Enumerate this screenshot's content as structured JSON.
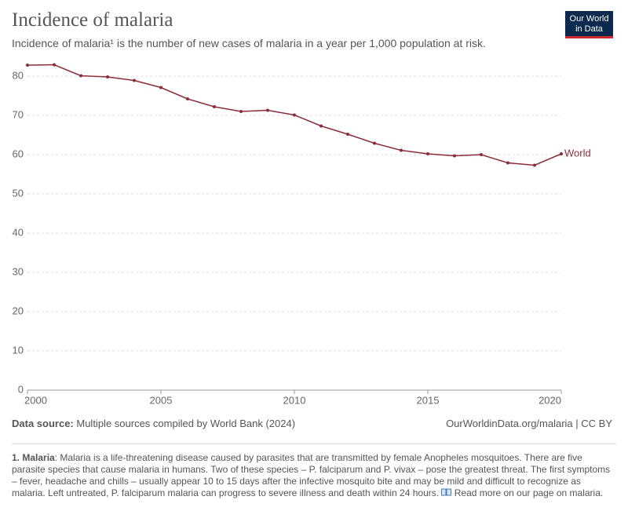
{
  "chart_data": {
    "type": "line",
    "title": "Incidence of malaria",
    "subtitle": "Incidence of malaria¹ is the number of new cases of malaria in a year per 1,000 population at risk.",
    "logo": [
      "Our World",
      "in Data"
    ],
    "x": [
      2000,
      2001,
      2002,
      2003,
      2004,
      2005,
      2006,
      2007,
      2008,
      2009,
      2010,
      2011,
      2012,
      2013,
      2014,
      2015,
      2016,
      2017,
      2018,
      2019,
      2020
    ],
    "series": [
      {
        "name": "World",
        "color": "#8c2c3a",
        "values": [
          82.8,
          82.9,
          80.1,
          79.8,
          78.9,
          77.1,
          74.2,
          72.2,
          71.0,
          71.3,
          70.1,
          67.3,
          65.2,
          62.9,
          61.1,
          60.2,
          59.7,
          60.0,
          57.9,
          57.3,
          60.2
        ]
      }
    ],
    "xlim": [
      2000,
      2020
    ],
    "xticks": [
      2000,
      2005,
      2010,
      2015,
      2020
    ],
    "ylim": [
      0,
      84
    ],
    "yticks": [
      0,
      10,
      20,
      30,
      40,
      50,
      60,
      70,
      80
    ],
    "grid": true,
    "source": {
      "label": "Data source:",
      "text": "Multiple sources compiled by World Bank (2024)"
    },
    "url": "OurWorldinData.org/malaria | CC BY",
    "footnote": {
      "label": "1. Malaria",
      "text": ": Malaria is a life-threatening disease caused by parasites that are transmitted by female Anopheles mosquitoes. There are five parasite species that cause malaria in humans. Two of these species – P. falciparum and P. vivax – pose the greatest threat. The first symptoms – fever, headache and chills – usually appear 10 to 15 days after the infective mosquito bite and may be mild and difficult to recognize as malaria. Left untreated, P. falciparum malaria can progress to severe illness and death within 24 hours.",
      "link": "Read more on our page on malaria."
    }
  }
}
